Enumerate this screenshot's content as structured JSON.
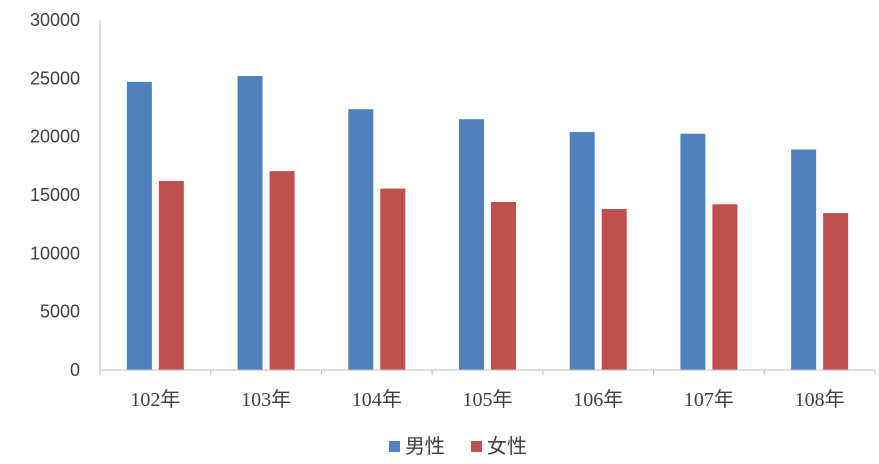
{
  "chart_data": {
    "type": "bar",
    "title": "",
    "xlabel": "",
    "ylabel": "",
    "categories": [
      "102年",
      "103年",
      "104年",
      "105年",
      "106年",
      "107年",
      "108年"
    ],
    "series": [
      {
        "name": "男性",
        "color": "#4f81bd",
        "values": [
          24700,
          25200,
          22350,
          21500,
          20400,
          20250,
          18900
        ]
      },
      {
        "name": "女性",
        "color": "#c0504d",
        "values": [
          16200,
          17050,
          15550,
          14400,
          13800,
          14200,
          13450
        ]
      }
    ],
    "ylim": [
      0,
      30000
    ],
    "yticks": [
      0,
      5000,
      10000,
      15000,
      20000,
      25000,
      30000
    ],
    "grid": false,
    "legend_position": "bottom"
  }
}
